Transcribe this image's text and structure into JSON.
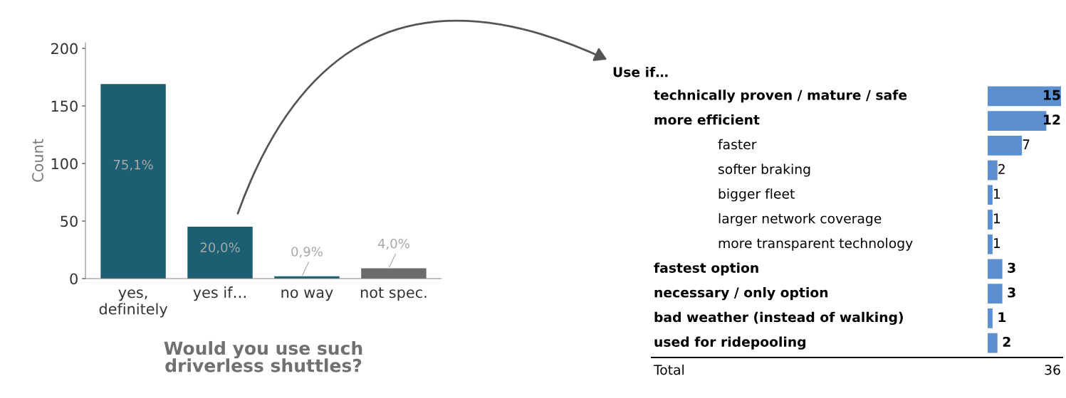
{
  "chart_data": [
    {
      "type": "bar",
      "title": "Would you use such\ndriverless shuttles?",
      "ylabel": "Count",
      "categories": [
        "yes,\ndefinitely",
        "yes if…",
        "no way",
        "not spec."
      ],
      "values": [
        169,
        45,
        2,
        9
      ],
      "colors": [
        "#1c5f73",
        "#1c5f73",
        "#1c5f73",
        "#6b6b6b"
      ],
      "annotations": [
        "75,1%",
        "20,0%",
        "0,9%",
        "4,0%"
      ],
      "ylim": [
        0,
        205
      ],
      "yticks": [
        0,
        50,
        100,
        150,
        200
      ],
      "grid": false,
      "legend": false
    },
    {
      "type": "bar",
      "orientation": "horizontal",
      "categories": [
        "technically proven / mature / safe",
        "more efficient",
        "faster",
        "softer braking",
        "bigger fleet",
        "larger network coverage",
        "more transparent technology",
        "fastest option",
        "necessary / only option",
        "bad weather (instead of walking)",
        "used for ridepooling"
      ],
      "values": [
        15,
        12,
        7,
        2,
        1,
        1,
        1,
        3,
        3,
        1,
        2
      ],
      "color": "#5b8fd0",
      "data_labels": true,
      "annotations": [
        "Use if…",
        "Total",
        "36"
      ],
      "tick_labels": false,
      "grid": false,
      "legend": false
    }
  ]
}
